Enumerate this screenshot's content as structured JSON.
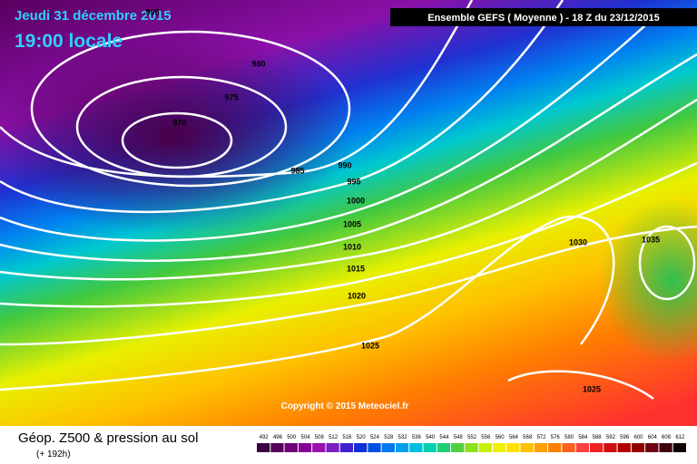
{
  "header": {
    "date": "Jeudi 31 décembre 2015",
    "time": "19:00 locale",
    "model": "Ensemble GEFS  ( Moyenne )  -  18 Z du 23/12/2015"
  },
  "isobar_labels": [
    "995",
    "980",
    "975",
    "970",
    "985",
    "990",
    "995",
    "1000",
    "1005",
    "1010",
    "1015",
    "1020",
    "1025",
    "1030",
    "1035",
    "1025"
  ],
  "copyright": "Copyright © 2015 Meteociel.fr",
  "footer": {
    "title": "Géop. Z500 & pression au sol",
    "range": "(+ 192h)"
  },
  "scale": {
    "labels": [
      "492",
      "496",
      "500",
      "504",
      "508",
      "512",
      "516",
      "520",
      "524",
      "528",
      "532",
      "536",
      "540",
      "544",
      "548",
      "552",
      "556",
      "560",
      "564",
      "568",
      "572",
      "576",
      "580",
      "584",
      "588",
      "592",
      "596",
      "600",
      "604",
      "608",
      "612"
    ],
    "colors": [
      "#3c0040",
      "#56005c",
      "#6e0078",
      "#860096",
      "#9a10b0",
      "#7a20c0",
      "#4020d0",
      "#1030d8",
      "#0050e0",
      "#0078f0",
      "#00a0f0",
      "#00c0e0",
      "#00d0b0",
      "#20d070",
      "#50d040",
      "#90e020",
      "#c8f000",
      "#f0f000",
      "#ffe000",
      "#ffc000",
      "#ffa000",
      "#ff8000",
      "#ff6020",
      "#ff4040",
      "#f02020",
      "#d01010",
      "#b00000",
      "#900000",
      "#700010",
      "#400010",
      "#100000"
    ]
  }
}
